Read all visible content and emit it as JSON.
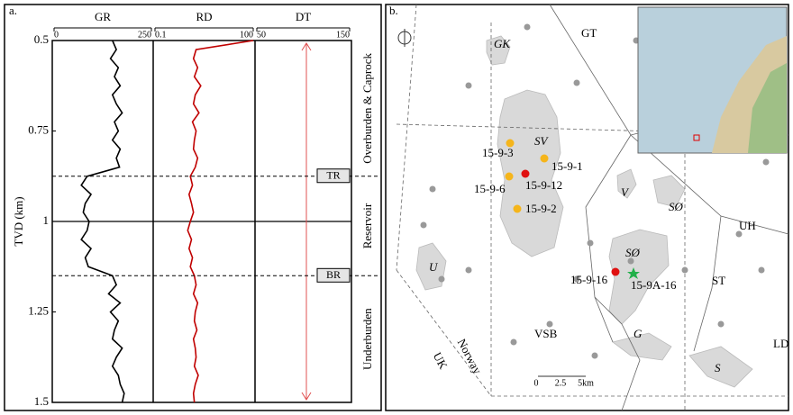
{
  "chart_data": {
    "type": "well-log",
    "label": "a.",
    "y_axis_label": "TVD (km)",
    "ylim": [
      0.5,
      1.5
    ],
    "yticks": [
      0.5,
      0.75,
      1,
      1.25,
      1.5
    ],
    "depth": [
      0.5,
      0.525,
      0.55,
      0.575,
      0.6,
      0.625,
      0.65,
      0.675,
      0.7,
      0.725,
      0.75,
      0.775,
      0.8,
      0.825,
      0.85,
      0.875,
      0.9,
      0.925,
      0.95,
      0.975,
      1,
      1.025,
      1.05,
      1.075,
      1.1,
      1.125,
      1.15,
      1.175,
      1.2,
      1.225,
      1.25,
      1.275,
      1.3,
      1.325,
      1.35,
      1.375,
      1.4,
      1.425,
      1.45,
      1.475,
      1.5
    ],
    "tracks": [
      {
        "name": "GR",
        "xlim": [
          0,
          250
        ],
        "xticks": [
          0,
          250
        ],
        "color": "#000000",
        "values": [
          150,
          160,
          145,
          165,
          155,
          170,
          150,
          160,
          175,
          155,
          165,
          150,
          170,
          160,
          168,
          85,
          70,
          95,
          80,
          75,
          90,
          85,
          70,
          95,
          80,
          88,
          150,
          160,
          140,
          170,
          145,
          165,
          155,
          150,
          175,
          160,
          150,
          165,
          170,
          180,
          175
        ]
      },
      {
        "name": "RD",
        "xlim": [
          0.1,
          100
        ],
        "xticks": [
          0.1,
          100
        ],
        "log": true,
        "color": "#c00000",
        "values": [
          100,
          1.8,
          1.5,
          2,
          1.6,
          2.5,
          1.7,
          1.5,
          2.2,
          1.4,
          1.8,
          1.6,
          1.5,
          2,
          1.7,
          1.2,
          1.4,
          1.1,
          1.3,
          1.5,
          1.2,
          1.0,
          1.3,
          1.1,
          1.4,
          1.2,
          1.6,
          1.8,
          1.5,
          2,
          1.7,
          1.6,
          1.9,
          1.5,
          1.7,
          1.8,
          1.6,
          2.1,
          1.7,
          1.5,
          1.6
        ]
      },
      {
        "name": "DT",
        "xlim": [
          50,
          150
        ],
        "xticks": [
          50,
          150
        ]
      }
    ],
    "tops": [
      {
        "name": "TR",
        "depth": 0.875
      },
      {
        "name": "BR",
        "depth": 1.15
      }
    ],
    "zones": [
      "Overburden & Caprock",
      "Reservoir",
      "Underburden"
    ]
  },
  "map": {
    "label": "b.",
    "areas": [
      "GK",
      "GT",
      "SV",
      "V",
      "SØ",
      "SØ",
      "UH",
      "ST",
      "U",
      "VSB",
      "G",
      "S",
      "LD",
      "Norway",
      "UK"
    ],
    "wells": [
      "15-9-3",
      "15-9-1",
      "15-9-12",
      "15-9-6",
      "15-9-2",
      "15-9-16",
      "15-9A-16"
    ],
    "scale": [
      "0",
      "2.5",
      "5km"
    ]
  }
}
